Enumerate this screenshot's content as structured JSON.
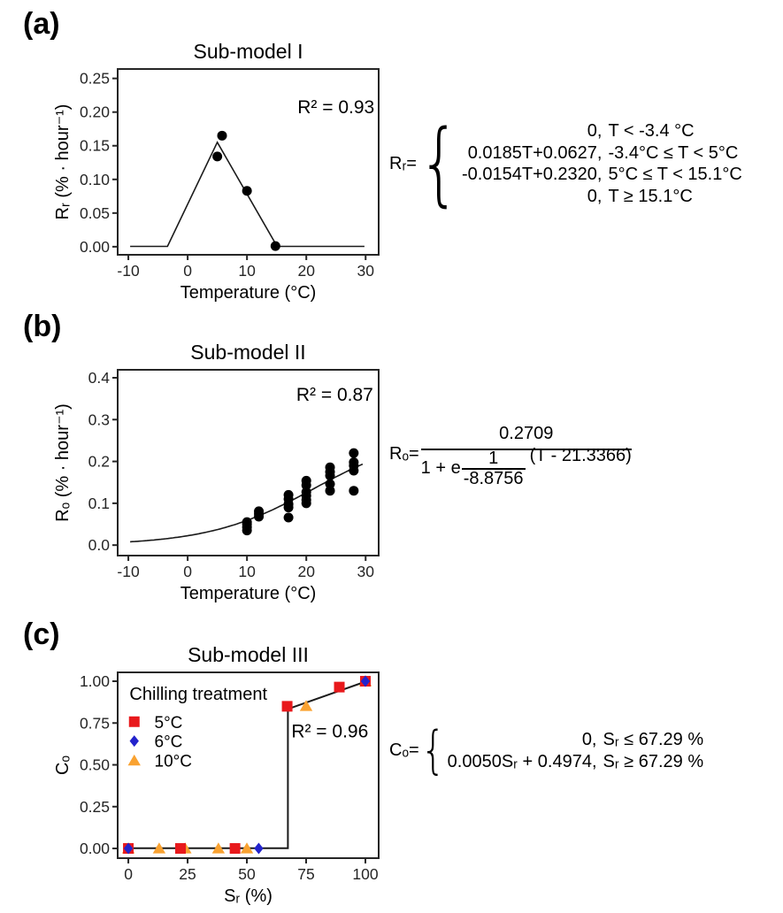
{
  "panels": [
    {
      "label": "(a)",
      "equation": {
        "lhs": "Rᵣ=",
        "brace": "{",
        "lines": [
          {
            "expr": "0,",
            "cond": "T < -3.4 °C"
          },
          {
            "expr": "0.0185T+0.0627,",
            "cond": "-3.4°C ≤ T < 5°C"
          },
          {
            "expr": "-0.0154T+0.2320,",
            "cond": "5°C ≤ T < 15.1°C"
          },
          {
            "expr": "0,",
            "cond": "T ≥ 15.1°C"
          }
        ]
      }
    },
    {
      "label": "(b)",
      "equation": {
        "lhs": "Rₒ=",
        "numerator": "0.2709",
        "den_prefix": "1 + e",
        "exp_num": "1",
        "exp_den": "-8.8756",
        "exp_rest": "(T - 21.3366)"
      }
    },
    {
      "label": "(c)",
      "equation": {
        "lhs": "Cₒ=",
        "brace": "{",
        "lines": [
          {
            "expr": "0,",
            "cond": "Sᵣ ≤ 67.29 %"
          },
          {
            "expr": "0.0050Sᵣ + 0.4974,",
            "cond": "Sᵣ ≥ 67.29 %"
          }
        ]
      }
    }
  ],
  "chart_data": [
    {
      "type": "scatter",
      "title": "Sub-model I",
      "xlabel": "Temperature (°C)",
      "ylabel": "Rᵣ (% · hour⁻¹)",
      "xlim": [
        -11.8,
        32.2
      ],
      "ylim": [
        -0.012,
        0.264
      ],
      "x_ticks": [
        -10,
        0,
        10,
        20,
        30
      ],
      "x_tick_labels": [
        "-10",
        "0",
        "10",
        "20",
        "30"
      ],
      "y_ticks": [
        0.0,
        0.05,
        0.1,
        0.15,
        0.2,
        0.25
      ],
      "y_tick_labels": [
        "0.00",
        "0.05",
        "0.10",
        "0.15",
        "0.20",
        "0.25"
      ],
      "grid": false,
      "fit": {
        "type": "polyline",
        "points": [
          [
            -9.7,
            0.0005
          ],
          [
            -3.4,
            0.0005
          ],
          [
            5,
            0.1552
          ],
          [
            15.07,
            0.0005
          ],
          [
            29.8,
            0.0005
          ]
        ],
        "width": 1.6
      },
      "series": [
        {
          "name": "observed",
          "shape": "circle",
          "color": "#000000",
          "points": [
            [
              5,
              0.134
            ],
            [
              5.8,
              0.165
            ],
            [
              10,
              0.083
            ],
            [
              14.8,
              0.001
            ]
          ]
        }
      ],
      "annotation": {
        "text": "R² = 0.93",
        "x": 25,
        "y": 0.198
      }
    },
    {
      "type": "scatter",
      "title": "Sub-model II",
      "xlabel": "Temperature (°C)",
      "ylabel": "Rₒ (% · hour⁻¹)",
      "xlim": [
        -11.8,
        32.2
      ],
      "ylim": [
        -0.025,
        0.419
      ],
      "x_ticks": [
        -10,
        0,
        10,
        20,
        30
      ],
      "x_tick_labels": [
        "-10",
        "0",
        "10",
        "20",
        "30"
      ],
      "y_ticks": [
        0.0,
        0.1,
        0.2,
        0.3,
        0.4
      ],
      "y_tick_labels": [
        "0.0",
        "0.1",
        "0.2",
        "0.3",
        "0.4"
      ],
      "grid": false,
      "fit": {
        "type": "logistic",
        "a": 0.2709,
        "k": -8.8756,
        "t0": 21.3366,
        "range": [
          -9.7,
          29.8
        ],
        "width": 1.6
      },
      "series": [
        {
          "name": "observed",
          "shape": "circle",
          "color": "#000000",
          "points": [
            [
              10,
              0.035
            ],
            [
              10,
              0.043
            ],
            [
              10,
              0.05
            ],
            [
              10,
              0.055
            ],
            [
              12,
              0.068
            ],
            [
              12,
              0.075
            ],
            [
              12,
              0.081
            ],
            [
              17,
              0.066
            ],
            [
              17,
              0.09
            ],
            [
              17,
              0.098
            ],
            [
              17,
              0.11
            ],
            [
              17,
              0.12
            ],
            [
              20,
              0.1
            ],
            [
              20,
              0.108
            ],
            [
              20,
              0.118
            ],
            [
              20,
              0.127
            ],
            [
              20,
              0.143
            ],
            [
              20,
              0.154
            ],
            [
              24,
              0.13
            ],
            [
              24,
              0.146
            ],
            [
              24,
              0.166
            ],
            [
              24,
              0.175
            ],
            [
              24,
              0.186
            ],
            [
              28,
              0.13
            ],
            [
              28,
              0.178
            ],
            [
              28,
              0.19
            ],
            [
              28,
              0.198
            ],
            [
              28,
              0.22
            ]
          ]
        }
      ],
      "annotation": {
        "text": "R² = 0.87",
        "x": 24.8,
        "y": 0.345
      }
    },
    {
      "type": "scatter",
      "title": "Sub-model III",
      "xlabel": "Sᵣ (%)",
      "ylabel": "Cₒ",
      "xlim": [
        -4.5,
        105.6
      ],
      "ylim": [
        -0.058,
        1.053
      ],
      "x_ticks": [
        0,
        25,
        50,
        75,
        100
      ],
      "x_tick_labels": [
        "0",
        "25",
        "50",
        "75",
        "100"
      ],
      "y_ticks": [
        0.0,
        0.25,
        0.5,
        0.75,
        1.0
      ],
      "y_tick_labels": [
        "0.00",
        "0.25",
        "0.50",
        "0.75",
        "1.00"
      ],
      "grid": false,
      "fit": {
        "type": "polyline",
        "points": [
          [
            0,
            0.001
          ],
          [
            67.29,
            0.001
          ],
          [
            67.29,
            0.8338
          ],
          [
            100,
            0.9974
          ]
        ],
        "width": 2
      },
      "series": [
        {
          "name": "10°C",
          "shape": "triangle",
          "color": "#f9a231",
          "points": [
            [
              0,
              0
            ],
            [
              13,
              0
            ],
            [
              24,
              0
            ],
            [
              38,
              0
            ],
            [
              50,
              0
            ],
            [
              75,
              0.852
            ],
            [
              100,
              1.0
            ]
          ]
        },
        {
          "name": "5°C",
          "shape": "square",
          "color": "#e8191c",
          "points": [
            [
              0,
              0
            ],
            [
              22,
              0
            ],
            [
              45,
              0
            ],
            [
              67,
              0.85
            ],
            [
              89,
              0.965
            ],
            [
              100,
              1.0
            ]
          ]
        },
        {
          "name": "6°C",
          "shape": "diamond",
          "color": "#2323cc",
          "points": [
            [
              0,
              0
            ],
            [
              55,
              0
            ],
            [
              100,
              1.0
            ]
          ]
        }
      ],
      "annotation": {
        "text": "R² = 0.96",
        "x": 85,
        "y": 0.665
      },
      "legend": {
        "title": "Chilling treatment",
        "title_x": 0.5,
        "title_y": 0.926,
        "marker_x": 2.5,
        "label_x": 11,
        "items": [
          {
            "label": "5°C",
            "shape": "square",
            "color": "#e8191c",
            "y": 0.758
          },
          {
            "label": "6°C",
            "shape": "diamond",
            "color": "#2323cc",
            "y": 0.642
          },
          {
            "label": "10°C",
            "shape": "triangle",
            "color": "#f9a231",
            "y": 0.526
          }
        ]
      }
    }
  ]
}
